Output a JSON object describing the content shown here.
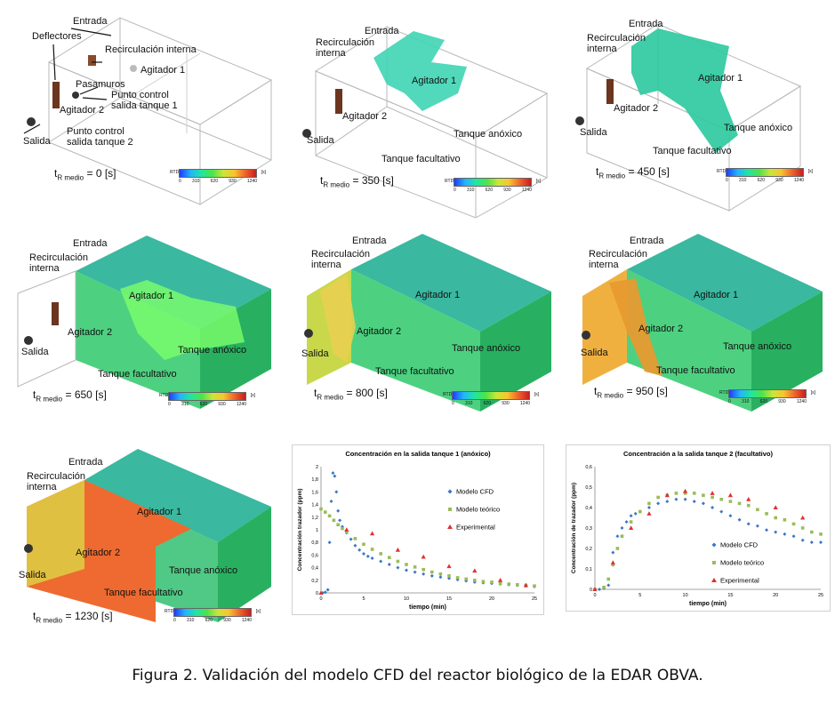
{
  "caption": "Figura 2. Validación del modelo CFD del reactor biológico de la EDAR OBVA.",
  "colorbar": {
    "label": "RTD",
    "unit": "[s]",
    "ticks": [
      "0",
      "310",
      "620",
      "930",
      "1240"
    ]
  },
  "panels": [
    {
      "time_prefix": "t",
      "time_sub": "R medio",
      "time_value": "= 0 [s]",
      "labels": {
        "entrada": "Entrada",
        "deflectores": "Deflectores",
        "recirculacion": "Recirculación interna",
        "agitador1": "Agitador 1",
        "pasamuros": "Pasamuros",
        "punto1": "Punto control salida tanque 1",
        "agitador2": "Agitador 2",
        "punto2": "Punto control salida tanque 2",
        "salida": "Salida"
      }
    },
    {
      "time_prefix": "t",
      "time_sub": "R medio",
      "time_value": "= 350 [s]",
      "labels": {
        "entrada": "Entrada",
        "recirculacion": "Recirculación interna",
        "agitador1": "Agitador 1",
        "agitador2": "Agitador 2",
        "salida": "Salida",
        "anoxico": "Tanque anóxico",
        "facultativo": "Tanque facultativo"
      }
    },
    {
      "time_prefix": "t",
      "time_sub": "R medio",
      "time_value": "= 450 [s]",
      "labels": {
        "entrada": "Entrada",
        "recirculacion": "Recirculación interna",
        "agitador1": "Agitador 1",
        "agitador2": "Agitador 2",
        "salida": "Salida",
        "anoxico": "Tanque anóxico",
        "facultativo": "Tanque facultativo"
      }
    },
    {
      "time_prefix": "t",
      "time_sub": "R medio",
      "time_value": "= 650 [s]",
      "labels": {
        "entrada": "Entrada",
        "recirculacion": "Recirculación interna",
        "agitador1": "Agitador 1",
        "agitador2": "Agitador 2",
        "salida": "Salida",
        "anoxico": "Tanque anóxico",
        "facultativo": "Tanque facultativo"
      }
    },
    {
      "time_prefix": "t",
      "time_sub": "R medio",
      "time_value": "= 800 [s]",
      "labels": {
        "entrada": "Entrada",
        "recirculacion": "Recirculación interna",
        "agitador1": "Agitador 1",
        "agitador2": "Agitador 2",
        "salida": "Salida",
        "anoxico": "Tanque anóxico",
        "facultativo": "Tanque facultativo"
      }
    },
    {
      "time_prefix": "t",
      "time_sub": "R medio",
      "time_value": "= 950 [s]",
      "labels": {
        "entrada": "Entrada",
        "recirculacion": "Recirculación interna",
        "agitador1": "Agitador 1",
        "agitador2": "Agitador 2",
        "salida": "Salida",
        "anoxico": "Tanque anóxico",
        "facultativo": "Tanque facultativo"
      }
    },
    {
      "time_prefix": "t",
      "time_sub": "R medio",
      "time_value": "= 1230 [s]",
      "labels": {
        "entrada": "Entrada",
        "recirculacion": "Recirculación interna",
        "agitador1": "Agitador 1",
        "agitador2": "Agitador 2",
        "salida": "Salida",
        "anoxico": "Tanque anóxico",
        "facultativo": "Tanque facultativo"
      }
    }
  ],
  "chart_data": [
    {
      "type": "scatter",
      "title": "Concentración en la salida tanque 1 (anóxico)",
      "xlabel": "tiempo (min)",
      "ylabel": "Concentración trazador (ppm)",
      "xlim": [
        0,
        25
      ],
      "ylim": [
        0,
        2
      ],
      "xticks": [
        "0",
        "5",
        "10",
        "15",
        "20",
        "25"
      ],
      "yticks": [
        "0",
        "0,2",
        "0,4",
        "0,6",
        "0,8",
        "1",
        "1,2",
        "1,4",
        "1,6",
        "1,8",
        "2"
      ],
      "legend_position": "right",
      "series": [
        {
          "name": "Modelo CFD",
          "color": "#3b78c4",
          "marker": "diamond",
          "x": [
            0.2,
            0.5,
            0.8,
            1,
            1.2,
            1.4,
            1.6,
            1.8,
            2,
            2.2,
            2.5,
            3,
            3.5,
            4,
            4.5,
            5,
            5.5,
            6,
            7,
            8,
            9,
            10,
            11,
            12,
            13,
            14,
            15,
            16,
            17,
            18,
            19,
            20,
            21,
            22,
            23,
            24,
            25
          ],
          "y": [
            0,
            0.01,
            0.05,
            0.8,
            1.45,
            1.9,
            1.85,
            1.6,
            1.3,
            1.15,
            1.05,
            0.95,
            0.85,
            0.75,
            0.68,
            0.62,
            0.58,
            0.55,
            0.5,
            0.45,
            0.4,
            0.36,
            0.33,
            0.3,
            0.27,
            0.25,
            0.23,
            0.21,
            0.19,
            0.17,
            0.16,
            0.15,
            0.14,
            0.13,
            0.12,
            0.11,
            0.1
          ]
        },
        {
          "name": "Modelo teórico",
          "color": "#9bbb59",
          "marker": "square",
          "x": [
            0,
            0.5,
            1,
            1.5,
            2,
            2.5,
            3,
            4,
            5,
            6,
            7,
            8,
            9,
            10,
            11,
            12,
            13,
            14,
            15,
            16,
            17,
            18,
            19,
            20,
            21,
            22,
            23,
            24,
            25
          ],
          "y": [
            1.33,
            1.28,
            1.22,
            1.15,
            1.08,
            1.02,
            0.96,
            0.86,
            0.77,
            0.69,
            0.62,
            0.56,
            0.5,
            0.45,
            0.41,
            0.37,
            0.33,
            0.3,
            0.27,
            0.24,
            0.22,
            0.2,
            0.18,
            0.17,
            0.15,
            0.14,
            0.13,
            0.12,
            0.11
          ]
        },
        {
          "name": "Experimental",
          "color": "#e03030",
          "marker": "triangle",
          "x": [
            0,
            3,
            6,
            9,
            12,
            15,
            18,
            21,
            24
          ],
          "y": [
            0,
            1,
            0.94,
            0.68,
            0.57,
            0.42,
            0.35,
            0.2,
            0.12
          ]
        }
      ]
    },
    {
      "type": "scatter",
      "title": "Concentración a la salida tanque 2 (facultativo)",
      "xlabel": "tiempo (min)",
      "ylabel": "Concentración de trazador (ppm)",
      "xlim": [
        0,
        25
      ],
      "ylim": [
        0,
        0.6
      ],
      "xticks": [
        "0",
        "5",
        "10",
        "15",
        "20",
        "25"
      ],
      "yticks": [
        "0",
        "0,1",
        "0,2",
        "0,3",
        "0,4",
        "0,5",
        "0,6"
      ],
      "legend_position": "bottom-right",
      "series": [
        {
          "name": "Modelo CFD",
          "color": "#3b78c4",
          "marker": "diamond",
          "x": [
            0,
            0.5,
            1,
            1.5,
            2,
            2.5,
            3,
            3.5,
            4,
            4.5,
            5,
            6,
            7,
            8,
            9,
            10,
            11,
            12,
            13,
            14,
            15,
            16,
            17,
            18,
            19,
            20,
            21,
            22,
            23,
            24,
            25
          ],
          "y": [
            0,
            0,
            0.005,
            0.02,
            0.18,
            0.26,
            0.3,
            0.33,
            0.36,
            0.37,
            0.38,
            0.4,
            0.42,
            0.43,
            0.44,
            0.44,
            0.43,
            0.42,
            0.4,
            0.38,
            0.36,
            0.34,
            0.32,
            0.31,
            0.29,
            0.28,
            0.27,
            0.26,
            0.24,
            0.23,
            0.23
          ]
        },
        {
          "name": "Modelo teórico",
          "color": "#9bbb59",
          "marker": "square",
          "x": [
            0,
            1,
            1.5,
            2,
            2.5,
            3,
            4,
            5,
            6,
            7,
            8,
            9,
            10,
            11,
            12,
            13,
            14,
            15,
            16,
            17,
            18,
            19,
            20,
            21,
            22,
            23,
            24,
            25
          ],
          "y": [
            0,
            0.01,
            0.05,
            0.12,
            0.2,
            0.26,
            0.33,
            0.38,
            0.42,
            0.45,
            0.46,
            0.47,
            0.47,
            0.47,
            0.46,
            0.45,
            0.44,
            0.43,
            0.42,
            0.41,
            0.39,
            0.37,
            0.35,
            0.34,
            0.32,
            0.3,
            0.28,
            0.27
          ]
        },
        {
          "name": "Experimental",
          "color": "#e03030",
          "marker": "triangle",
          "x": [
            0,
            2,
            4,
            6,
            8,
            10,
            13,
            15,
            17,
            20,
            23
          ],
          "y": [
            0,
            0.13,
            0.3,
            0.37,
            0.46,
            0.48,
            0.47,
            0.46,
            0.44,
            0.4,
            0.35
          ]
        }
      ]
    }
  ]
}
